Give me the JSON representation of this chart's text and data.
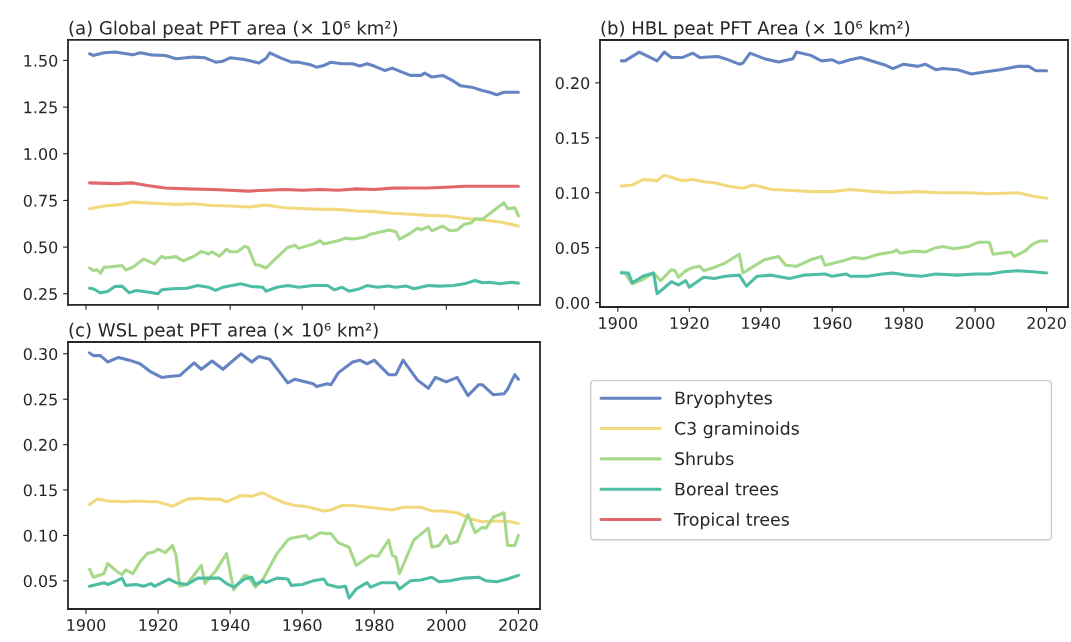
{
  "chart_data": [
    {
      "type": "line",
      "title": "(a) Global peat PFT area (× 10⁶ km²)",
      "xlim": [
        1895,
        2026
      ],
      "xticks": [
        1900,
        1920,
        1940,
        1960,
        1980,
        2000,
        2020
      ],
      "ylim": [
        0.19,
        1.61
      ],
      "yticks": [
        {
          "value": 0.25,
          "label": "0.25"
        },
        {
          "value": 0.5,
          "label": "0.50"
        },
        {
          "value": 0.75,
          "label": "0.75"
        },
        {
          "value": 1.0,
          "label": "1.00"
        },
        {
          "value": 1.25,
          "label": "1.25"
        },
        {
          "value": 1.5,
          "label": "1.50"
        }
      ],
      "tick_labels": "y",
      "grid": false,
      "legend": "bottom right",
      "series": [
        {
          "name": "Bryophytes",
          "color": "#6584c2",
          "x": [
            1901,
            1902,
            1905,
            1908,
            1913,
            1915,
            1918,
            1922,
            1925,
            1930,
            1933,
            1936,
            1938,
            1940,
            1944,
            1946,
            1948,
            1950,
            1951,
            1954,
            1957,
            1959,
            1962,
            1964,
            1966,
            1968,
            1971,
            1974,
            1976,
            1978,
            1980,
            1983,
            1985,
            1987,
            1990,
            1993,
            1994,
            1996,
            1999,
            2002,
            2004,
            2007,
            2010,
            2012,
            2014,
            2016,
            2020
          ],
          "values": [
            1.536,
            1.527,
            1.541,
            1.545,
            1.53,
            1.541,
            1.53,
            1.527,
            1.509,
            1.518,
            1.514,
            1.491,
            1.496,
            1.514,
            1.505,
            1.496,
            1.486,
            1.512,
            1.541,
            1.514,
            1.491,
            1.491,
            1.479,
            1.464,
            1.473,
            1.491,
            1.482,
            1.482,
            1.47,
            1.482,
            1.47,
            1.446,
            1.459,
            1.443,
            1.42,
            1.42,
            1.432,
            1.411,
            1.42,
            1.389,
            1.364,
            1.357,
            1.339,
            1.33,
            1.316,
            1.33,
            1.33
          ]
        },
        {
          "name": "C3 graminoids",
          "color": "#f3d97e",
          "x": [
            1901,
            1905,
            1910,
            1913,
            1920,
            1925,
            1930,
            1935,
            1940,
            1945,
            1950,
            1955,
            1960,
            1965,
            1970,
            1975,
            1980,
            1985,
            1990,
            1995,
            2000,
            2005,
            2010,
            2015,
            2020
          ],
          "values": [
            0.706,
            0.72,
            0.729,
            0.741,
            0.734,
            0.729,
            0.732,
            0.723,
            0.72,
            0.715,
            0.725,
            0.711,
            0.707,
            0.702,
            0.702,
            0.693,
            0.69,
            0.681,
            0.676,
            0.67,
            0.667,
            0.654,
            0.645,
            0.635,
            0.613
          ]
        },
        {
          "name": "Shrubs",
          "color": "#a6d98a",
          "x": [
            1901,
            1902,
            1903,
            1904,
            1905,
            1907,
            1910,
            1911,
            1913,
            1915,
            1916,
            1919,
            1921,
            1922,
            1925,
            1926,
            1927,
            1930,
            1932,
            1934,
            1935,
            1937,
            1939,
            1940,
            1942,
            1944,
            1945,
            1947,
            1948,
            1950,
            1952,
            1956,
            1958,
            1959,
            1963,
            1965,
            1966,
            1970,
            1972,
            1974,
            1977,
            1979,
            1982,
            1984,
            1986,
            1987,
            1990,
            1992,
            1993,
            1995,
            1996,
            1999,
            2001,
            2003,
            2005,
            2007,
            2008,
            2010,
            2013,
            2016,
            2017,
            2019,
            2020
          ],
          "values": [
            0.388,
            0.374,
            0.379,
            0.36,
            0.392,
            0.395,
            0.401,
            0.377,
            0.392,
            0.422,
            0.436,
            0.41,
            0.451,
            0.441,
            0.449,
            0.436,
            0.427,
            0.451,
            0.477,
            0.463,
            0.475,
            0.451,
            0.489,
            0.475,
            0.475,
            0.504,
            0.498,
            0.404,
            0.404,
            0.388,
            0.427,
            0.498,
            0.51,
            0.493,
            0.516,
            0.534,
            0.516,
            0.534,
            0.548,
            0.543,
            0.551,
            0.569,
            0.582,
            0.592,
            0.582,
            0.543,
            0.574,
            0.601,
            0.592,
            0.61,
            0.587,
            0.613,
            0.587,
            0.592,
            0.622,
            0.631,
            0.652,
            0.649,
            0.693,
            0.738,
            0.706,
            0.711,
            0.667
          ]
        },
        {
          "name": "Boreal trees",
          "color": "#4dbda3",
          "x": [
            1901,
            1902,
            1904,
            1906,
            1908,
            1910,
            1912,
            1914,
            1917,
            1920,
            1921,
            1924,
            1928,
            1931,
            1934,
            1936,
            1938,
            1943,
            1946,
            1949,
            1950,
            1953,
            1956,
            1959,
            1963,
            1967,
            1969,
            1971,
            1973,
            1976,
            1978,
            1981,
            1984,
            1986,
            1989,
            1991,
            1995,
            1998,
            2002,
            2005,
            2008,
            2010,
            2012,
            2015,
            2018,
            2020
          ],
          "values": [
            0.28,
            0.277,
            0.255,
            0.262,
            0.289,
            0.291,
            0.255,
            0.268,
            0.259,
            0.25,
            0.271,
            0.277,
            0.28,
            0.294,
            0.285,
            0.268,
            0.285,
            0.303,
            0.289,
            0.285,
            0.264,
            0.285,
            0.294,
            0.285,
            0.294,
            0.294,
            0.271,
            0.285,
            0.264,
            0.277,
            0.294,
            0.285,
            0.291,
            0.285,
            0.291,
            0.277,
            0.294,
            0.291,
            0.294,
            0.303,
            0.321,
            0.309,
            0.312,
            0.303,
            0.312,
            0.307
          ]
        },
        {
          "name": "Tropical trees",
          "color": "#e1676a",
          "x": [
            1901,
            1908,
            1913,
            1917,
            1922,
            1928,
            1935,
            1940,
            1945,
            1950,
            1955,
            1960,
            1965,
            1970,
            1975,
            1980,
            1985,
            1990,
            1995,
            2000,
            2005,
            2010,
            2015,
            2020
          ],
          "values": [
            0.844,
            0.84,
            0.844,
            0.83,
            0.817,
            0.812,
            0.809,
            0.805,
            0.8,
            0.805,
            0.809,
            0.805,
            0.809,
            0.805,
            0.812,
            0.809,
            0.816,
            0.817,
            0.817,
            0.821,
            0.826,
            0.826,
            0.826,
            0.826
          ]
        }
      ]
    },
    {
      "type": "line",
      "title": "(b) HBL peat PFT Area (× 10⁶ km²)",
      "xlim": [
        1895,
        2026
      ],
      "xticks": [
        1900,
        1920,
        1940,
        1960,
        1980,
        2000,
        2020
      ],
      "ylim": [
        -0.004,
        0.239
      ],
      "yticks": [
        {
          "value": 0.0,
          "label": "0.00"
        },
        {
          "value": 0.05,
          "label": "0.05"
        },
        {
          "value": 0.1,
          "label": "0.10"
        },
        {
          "value": 0.15,
          "label": "0.15"
        },
        {
          "value": 0.2,
          "label": "0.20"
        }
      ],
      "grid": false,
      "series": [
        {
          "color": "#6584c2",
          "x": [
            1901,
            1902,
            1906,
            1911,
            1913,
            1915,
            1918,
            1921,
            1923,
            1928,
            1930,
            1934,
            1935,
            1937,
            1941,
            1945,
            1949,
            1950,
            1954,
            1957,
            1960,
            1962,
            1965,
            1968,
            1972,
            1975,
            1977,
            1980,
            1984,
            1986,
            1989,
            1991,
            1995,
            1999,
            2003,
            2007,
            2012,
            2015,
            2017,
            2020
          ],
          "values": [
            0.22,
            0.22,
            0.228,
            0.22,
            0.228,
            0.223,
            0.223,
            0.227,
            0.223,
            0.224,
            0.222,
            0.217,
            0.218,
            0.227,
            0.222,
            0.219,
            0.222,
            0.228,
            0.225,
            0.22,
            0.221,
            0.218,
            0.221,
            0.223,
            0.219,
            0.216,
            0.213,
            0.217,
            0.215,
            0.217,
            0.212,
            0.213,
            0.212,
            0.208,
            0.21,
            0.212,
            0.215,
            0.215,
            0.211,
            0.211
          ]
        },
        {
          "color": "#f3d97e",
          "x": [
            1901,
            1904,
            1907,
            1911,
            1913,
            1916,
            1918,
            1921,
            1924,
            1927,
            1931,
            1935,
            1938,
            1943,
            1949,
            1954,
            1960,
            1965,
            1972,
            1977,
            1984,
            1990,
            1998,
            2004,
            2012,
            2016,
            2020
          ],
          "values": [
            0.106,
            0.107,
            0.112,
            0.111,
            0.116,
            0.113,
            0.111,
            0.112,
            0.11,
            0.109,
            0.106,
            0.104,
            0.107,
            0.103,
            0.102,
            0.101,
            0.101,
            0.103,
            0.101,
            0.1,
            0.101,
            0.1,
            0.1,
            0.099,
            0.1,
            0.097,
            0.095
          ]
        },
        {
          "color": "#a6d98a",
          "x": [
            1901,
            1902,
            1904,
            1907,
            1910,
            1912,
            1915,
            1916,
            1917,
            1919,
            1921,
            1923,
            1924,
            1927,
            1930,
            1934,
            1935,
            1938,
            1941,
            1945,
            1947,
            1950,
            1954,
            1957,
            1958,
            1963,
            1966,
            1969,
            1973,
            1977,
            1978,
            1979,
            1983,
            1986,
            1989,
            1991,
            1994,
            1998,
            2001,
            2004,
            2005,
            2010,
            2011,
            2014,
            2016,
            2018,
            2020
          ],
          "values": [
            0.028,
            0.027,
            0.017,
            0.021,
            0.027,
            0.02,
            0.03,
            0.029,
            0.023,
            0.029,
            0.032,
            0.033,
            0.029,
            0.032,
            0.036,
            0.044,
            0.027,
            0.033,
            0.039,
            0.042,
            0.034,
            0.033,
            0.039,
            0.042,
            0.034,
            0.038,
            0.041,
            0.04,
            0.044,
            0.046,
            0.048,
            0.045,
            0.047,
            0.046,
            0.05,
            0.051,
            0.049,
            0.051,
            0.055,
            0.055,
            0.044,
            0.046,
            0.042,
            0.047,
            0.053,
            0.056,
            0.056
          ]
        },
        {
          "color": "#4dbda3",
          "x": [
            1901,
            1903,
            1904,
            1907,
            1910,
            1911,
            1915,
            1917,
            1919,
            1920,
            1924,
            1927,
            1930,
            1934,
            1936,
            1939,
            1943,
            1948,
            1952,
            1958,
            1960,
            1964,
            1965,
            1970,
            1974,
            1977,
            1981,
            1985,
            1989,
            1995,
            2000,
            2004,
            2008,
            2012,
            2016,
            2020
          ],
          "values": [
            0.027,
            0.027,
            0.018,
            0.024,
            0.027,
            0.008,
            0.019,
            0.016,
            0.02,
            0.014,
            0.023,
            0.022,
            0.024,
            0.025,
            0.015,
            0.024,
            0.025,
            0.022,
            0.025,
            0.026,
            0.024,
            0.026,
            0.024,
            0.024,
            0.026,
            0.027,
            0.025,
            0.024,
            0.026,
            0.025,
            0.026,
            0.026,
            0.028,
            0.029,
            0.028,
            0.027
          ]
        }
      ]
    },
    {
      "type": "line",
      "title": "(c) WSL peat PFT area (× 10⁶ km²)",
      "xlim": [
        1895,
        2026
      ],
      "xticks": [
        1900,
        1920,
        1940,
        1960,
        1980,
        2000,
        2020
      ],
      "ylim": [
        0.019,
        0.313
      ],
      "yticks": [
        {
          "value": 0.05,
          "label": "0.05"
        },
        {
          "value": 0.1,
          "label": "0.10"
        },
        {
          "value": 0.15,
          "label": "0.15"
        },
        {
          "value": 0.2,
          "label": "0.20"
        },
        {
          "value": 0.25,
          "label": "0.25"
        },
        {
          "value": 0.3,
          "label": "0.30"
        }
      ],
      "grid": false,
      "series": [
        {
          "color": "#6584c2",
          "x": [
            1901,
            1902,
            1904,
            1906,
            1909,
            1912,
            1915,
            1918,
            1921,
            1923,
            1926,
            1930,
            1932,
            1935,
            1938,
            1943,
            1946,
            1948,
            1951,
            1956,
            1958,
            1963,
            1964,
            1967,
            1968,
            1970,
            1974,
            1976,
            1978,
            1980,
            1984,
            1986,
            1988,
            1992,
            1995,
            1997,
            2000,
            2003,
            2006,
            2009,
            2010,
            2013,
            2016,
            2017,
            2019,
            2020
          ],
          "values": [
            0.301,
            0.298,
            0.298,
            0.291,
            0.296,
            0.293,
            0.289,
            0.28,
            0.274,
            0.275,
            0.276,
            0.29,
            0.283,
            0.292,
            0.283,
            0.3,
            0.291,
            0.297,
            0.294,
            0.268,
            0.272,
            0.267,
            0.264,
            0.267,
            0.266,
            0.279,
            0.291,
            0.293,
            0.289,
            0.293,
            0.277,
            0.277,
            0.293,
            0.271,
            0.262,
            0.274,
            0.269,
            0.274,
            0.254,
            0.266,
            0.266,
            0.255,
            0.256,
            0.261,
            0.277,
            0.272
          ]
        },
        {
          "color": "#f3d97e",
          "x": [
            1901,
            1903,
            1906,
            1911,
            1914,
            1918,
            1920,
            1924,
            1928,
            1931,
            1934,
            1937,
            1939,
            1943,
            1946,
            1949,
            1952,
            1955,
            1958,
            1961,
            1966,
            1968,
            1971,
            1974,
            1981,
            1985,
            1988,
            1993,
            1996,
            1999,
            2003,
            2007,
            2010,
            2014,
            2018,
            2020
          ],
          "values": [
            0.134,
            0.14,
            0.138,
            0.137,
            0.138,
            0.137,
            0.137,
            0.132,
            0.14,
            0.141,
            0.14,
            0.14,
            0.137,
            0.144,
            0.143,
            0.147,
            0.141,
            0.136,
            0.133,
            0.132,
            0.127,
            0.128,
            0.133,
            0.133,
            0.13,
            0.128,
            0.131,
            0.131,
            0.127,
            0.127,
            0.125,
            0.118,
            0.115,
            0.116,
            0.115,
            0.113
          ]
        },
        {
          "color": "#a6d98a",
          "x": [
            1901,
            1902,
            1905,
            1906,
            1909,
            1910,
            1911,
            1913,
            1915,
            1917,
            1919,
            1920,
            1922,
            1924,
            1925,
            1926,
            1928,
            1932,
            1933,
            1936,
            1939,
            1941,
            1944,
            1945,
            1947,
            1949,
            1953,
            1956,
            1957,
            1961,
            1962,
            1965,
            1967,
            1968,
            1970,
            1973,
            1975,
            1979,
            1981,
            1984,
            1985,
            1986,
            1987,
            1991,
            1995,
            1996,
            1998,
            2000,
            2001,
            2003,
            2006,
            2008,
            2010,
            2011,
            2013,
            2016,
            2017,
            2019,
            2020
          ],
          "values": [
            0.063,
            0.054,
            0.058,
            0.069,
            0.059,
            0.057,
            0.062,
            0.058,
            0.071,
            0.08,
            0.082,
            0.085,
            0.081,
            0.089,
            0.078,
            0.044,
            0.046,
            0.067,
            0.047,
            0.061,
            0.08,
            0.04,
            0.056,
            0.055,
            0.043,
            0.051,
            0.08,
            0.095,
            0.097,
            0.1,
            0.096,
            0.103,
            0.102,
            0.102,
            0.092,
            0.087,
            0.067,
            0.078,
            0.077,
            0.095,
            0.078,
            0.076,
            0.058,
            0.095,
            0.108,
            0.087,
            0.089,
            0.1,
            0.091,
            0.093,
            0.123,
            0.103,
            0.109,
            0.108,
            0.12,
            0.125,
            0.089,
            0.089,
            0.1
          ]
        },
        {
          "color": "#4dbda3",
          "x": [
            1901,
            1903,
            1905,
            1906,
            1908,
            1910,
            1911,
            1914,
            1916,
            1918,
            1919,
            1923,
            1925,
            1928,
            1931,
            1937,
            1939,
            1941,
            1944,
            1946,
            1947,
            1949,
            1950,
            1953,
            1956,
            1957,
            1960,
            1963,
            1966,
            1967,
            1970,
            1972,
            1973,
            1975,
            1978,
            1979,
            1982,
            1986,
            1987,
            1990,
            1993,
            1996,
            1998,
            2001,
            2005,
            2009,
            2011,
            2014,
            2017,
            2020
          ],
          "values": [
            0.044,
            0.046,
            0.048,
            0.046,
            0.049,
            0.053,
            0.045,
            0.046,
            0.044,
            0.047,
            0.044,
            0.052,
            0.048,
            0.046,
            0.053,
            0.053,
            0.047,
            0.043,
            0.052,
            0.054,
            0.046,
            0.05,
            0.048,
            0.053,
            0.052,
            0.045,
            0.046,
            0.05,
            0.052,
            0.046,
            0.043,
            0.044,
            0.031,
            0.041,
            0.048,
            0.043,
            0.048,
            0.048,
            0.041,
            0.05,
            0.051,
            0.054,
            0.049,
            0.05,
            0.053,
            0.054,
            0.05,
            0.049,
            0.052,
            0.056
          ]
        }
      ]
    }
  ]
}
